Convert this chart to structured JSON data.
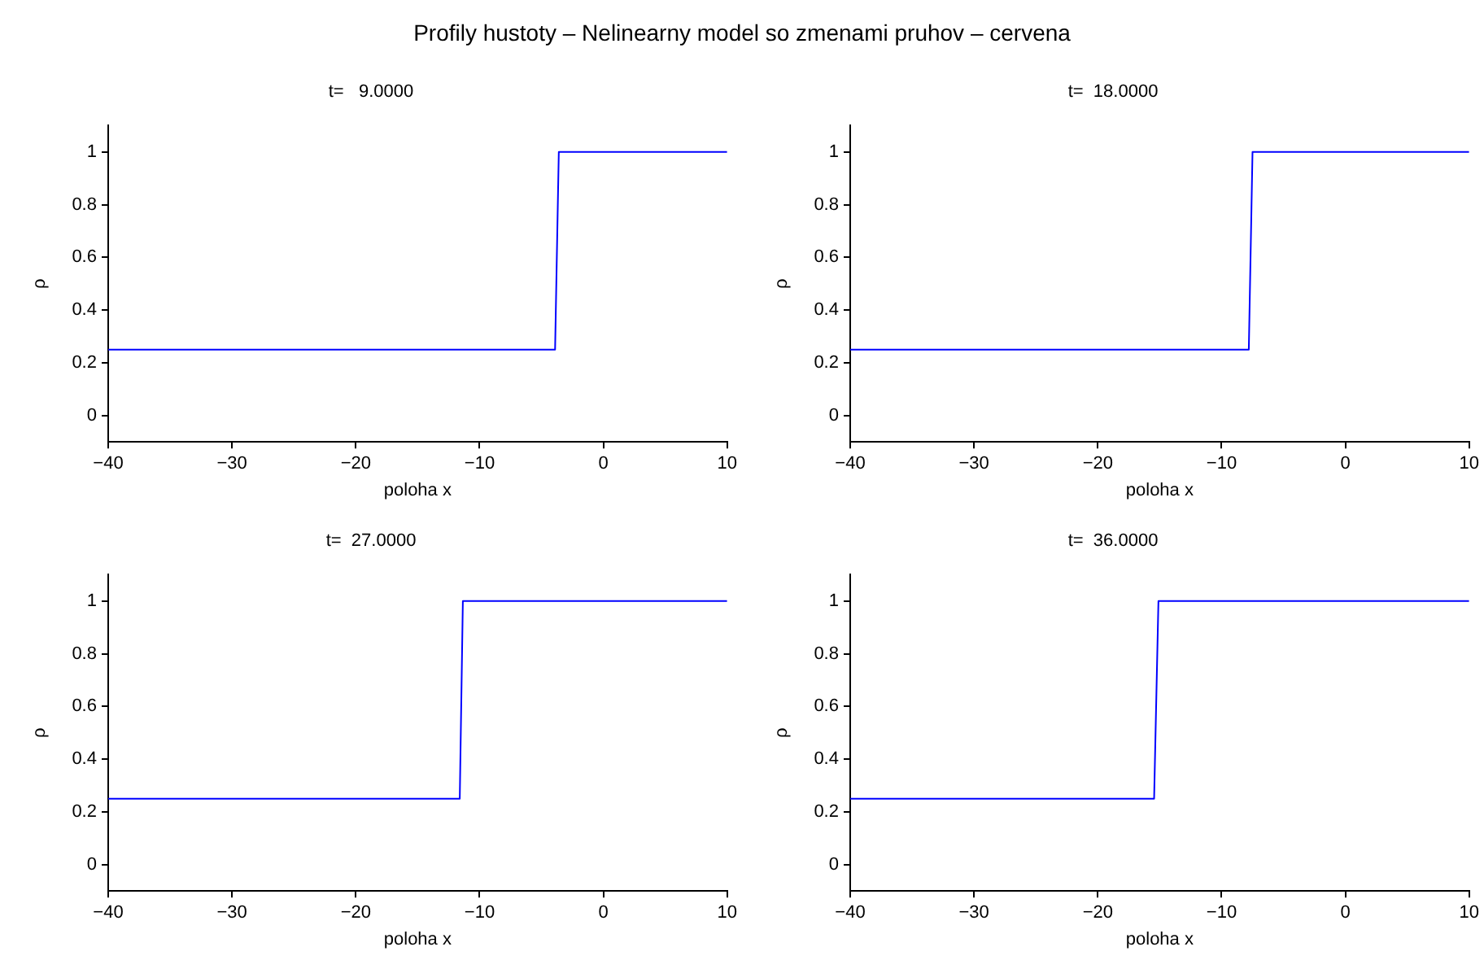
{
  "chart_data": [
    {
      "type": "line",
      "title": "t=   9.0000",
      "annotations": [
        "Profily hustoty – Nelinearny model so zmenami pruhov – cervena"
      ],
      "xlabel": "poloha x",
      "ylabel": "ρ",
      "x": [
        -40,
        -3.9,
        -3.6,
        10
      ],
      "series": [
        {
          "color": "#0000ff",
          "values": [
            0.25,
            0.25,
            1,
            1
          ]
        }
      ],
      "xlim": [
        -40,
        10
      ],
      "xticks": [
        -40,
        -30,
        -20,
        -10,
        0,
        10
      ],
      "ylim": [
        -0.1,
        1.1
      ],
      "yticks": [
        0,
        0.2,
        0.4,
        0.6,
        0.8,
        1
      ],
      "grid": false,
      "legend": false,
      "marker": "none"
    },
    {
      "type": "line",
      "title": "t=  18.0000",
      "xlabel": "poloha x",
      "ylabel": "ρ",
      "x": [
        -40,
        -7.8,
        -7.5,
        10
      ],
      "series": [
        {
          "color": "#0000ff",
          "values": [
            0.25,
            0.25,
            1,
            1
          ]
        }
      ],
      "xlim": [
        -40,
        10
      ],
      "xticks": [
        -40,
        -30,
        -20,
        -10,
        0,
        10
      ],
      "ylim": [
        -0.1,
        1.1
      ],
      "yticks": [
        0,
        0.2,
        0.4,
        0.6,
        0.8,
        1
      ],
      "grid": false,
      "legend": false,
      "marker": "none"
    },
    {
      "type": "line",
      "title": "t=  27.0000",
      "xlabel": "poloha x",
      "ylabel": "ρ",
      "x": [
        -40,
        -11.6,
        -11.35,
        10
      ],
      "series": [
        {
          "color": "#0000ff",
          "values": [
            0.25,
            0.25,
            1,
            1
          ]
        }
      ],
      "xlim": [
        -40,
        10
      ],
      "xticks": [
        -40,
        -30,
        -20,
        -10,
        0,
        10
      ],
      "ylim": [
        -0.1,
        1.1
      ],
      "yticks": [
        0,
        0.2,
        0.4,
        0.6,
        0.8,
        1
      ],
      "grid": false,
      "legend": false,
      "marker": "none"
    },
    {
      "type": "line",
      "title": "t=  36.0000",
      "xlabel": "poloha x",
      "ylabel": "ρ",
      "x": [
        -40,
        -15.45,
        -15.1,
        10
      ],
      "series": [
        {
          "color": "#0000ff",
          "values": [
            0.25,
            0.25,
            1,
            1
          ]
        }
      ],
      "xlim": [
        -40,
        10
      ],
      "xticks": [
        -40,
        -30,
        -20,
        -10,
        0,
        10
      ],
      "ylim": [
        -0.1,
        1.1
      ],
      "yticks": [
        0,
        0.2,
        0.4,
        0.6,
        0.8,
        1
      ],
      "grid": false,
      "legend": false,
      "marker": "none"
    }
  ]
}
